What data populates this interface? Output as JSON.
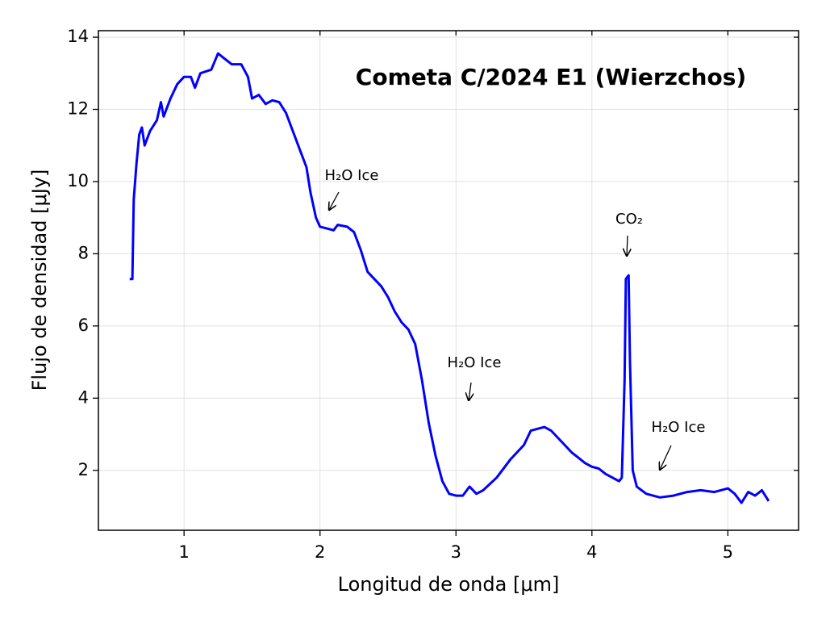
{
  "chart_data": {
    "type": "line",
    "title": "Cometa C/2024 E1 (Wierzchos)",
    "xlabel": "Longitud de onda [μm]",
    "ylabel": "Flujo de densidad [μJy]",
    "annotations": [
      "H₂O Ice",
      "H₂O Ice",
      "CO₂",
      "H₂O Ice"
    ],
    "xlim": [
      0.37,
      5.52
    ],
    "ylim": [
      0.34,
      14.18
    ],
    "xticks": [
      1,
      2,
      3,
      4,
      5
    ],
    "yticks": [
      2,
      4,
      6,
      8,
      10,
      12,
      14
    ],
    "grid": true,
    "x": [
      0.6,
      0.62,
      0.63,
      0.65,
      0.67,
      0.69,
      0.71,
      0.75,
      0.8,
      0.83,
      0.85,
      0.9,
      0.95,
      1.0,
      1.05,
      1.08,
      1.12,
      1.2,
      1.25,
      1.3,
      1.35,
      1.42,
      1.47,
      1.5,
      1.55,
      1.6,
      1.65,
      1.7,
      1.75,
      1.8,
      1.85,
      1.9,
      1.93,
      1.97,
      2.0,
      2.05,
      2.1,
      2.13,
      2.2,
      2.25,
      2.3,
      2.35,
      2.4,
      2.45,
      2.5,
      2.55,
      2.6,
      2.65,
      2.7,
      2.75,
      2.8,
      2.85,
      2.9,
      2.95,
      3.0,
      3.05,
      3.1,
      3.15,
      3.2,
      3.3,
      3.4,
      3.5,
      3.55,
      3.6,
      3.65,
      3.7,
      3.75,
      3.8,
      3.85,
      3.9,
      3.95,
      4.0,
      4.05,
      4.1,
      4.15,
      4.2,
      4.22,
      4.24,
      4.25,
      4.27,
      4.28,
      4.3,
      4.33,
      4.4,
      4.5,
      4.6,
      4.7,
      4.8,
      4.9,
      5.0,
      5.05,
      5.1,
      5.15,
      5.2,
      5.25,
      5.3
    ],
    "series": [
      {
        "color": "#0000ff",
        "values": [
          7.3,
          7.3,
          9.5,
          10.5,
          11.3,
          11.5,
          11.0,
          11.4,
          11.7,
          12.2,
          11.8,
          12.3,
          12.7,
          12.9,
          12.9,
          12.6,
          13.0,
          13.1,
          13.55,
          13.4,
          13.25,
          13.25,
          12.9,
          12.3,
          12.4,
          12.15,
          12.25,
          12.2,
          11.9,
          11.4,
          10.9,
          10.4,
          9.7,
          9.0,
          8.75,
          8.7,
          8.65,
          8.8,
          8.75,
          8.6,
          8.1,
          7.5,
          7.3,
          7.1,
          6.8,
          6.4,
          6.1,
          5.9,
          5.5,
          4.5,
          3.3,
          2.4,
          1.7,
          1.35,
          1.3,
          1.3,
          1.55,
          1.35,
          1.45,
          1.8,
          2.3,
          2.7,
          3.1,
          3.15,
          3.2,
          3.1,
          2.9,
          2.7,
          2.5,
          2.35,
          2.2,
          2.1,
          2.05,
          1.9,
          1.8,
          1.7,
          1.8,
          4.5,
          7.3,
          7.4,
          5.0,
          2.0,
          1.55,
          1.35,
          1.25,
          1.3,
          1.4,
          1.45,
          1.4,
          1.5,
          1.35,
          1.1,
          1.4,
          1.3,
          1.45,
          1.15
        ]
      }
    ]
  }
}
